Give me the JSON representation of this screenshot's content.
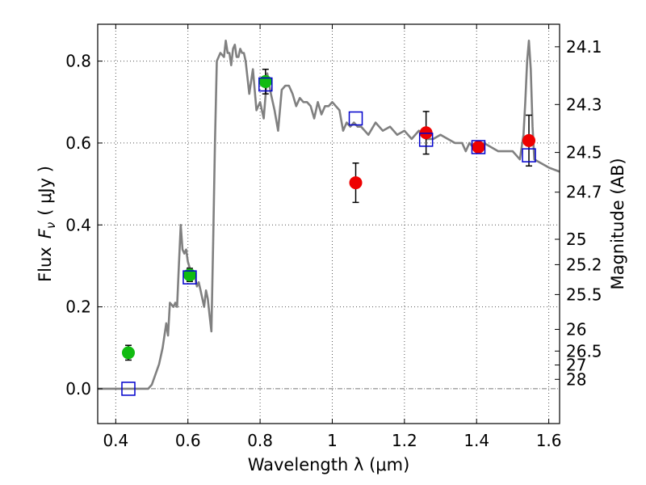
{
  "chart_data": {
    "type": "line",
    "title": "",
    "xlabel": "Wavelength  λ (μm)",
    "ylabel": "Flux  F_ν ( μJy )",
    "ylabel_parts": {
      "flux": "Flux",
      "symbol": "F",
      "subscript": "ν",
      "unit": "( μJy )"
    },
    "ylabel_right": "Magnitude (AB)",
    "xlim": [
      0.35,
      1.63
    ],
    "ylim": [
      -0.085,
      0.89
    ],
    "grid": true,
    "x_ticks": [
      0.4,
      0.6,
      0.8,
      1.0,
      1.2,
      1.4,
      1.6
    ],
    "x_tick_labels": [
      "0.4",
      "0.6",
      "0.8",
      "1",
      "1.2",
      "1.4",
      "1.6"
    ],
    "y_ticks": [
      0.0,
      0.2,
      0.4,
      0.6,
      0.8
    ],
    "y_tick_labels": [
      "0.0",
      "0.2",
      "0.4",
      "0.6",
      "0.8"
    ],
    "right_ticks": [
      {
        "label": "24.1",
        "flux": 0.835
      },
      {
        "label": "24.3",
        "flux": 0.694
      },
      {
        "label": "24.5",
        "flux": 0.577
      },
      {
        "label": "24.7",
        "flux": 0.48
      },
      {
        "label": "25",
        "flux": 0.365
      },
      {
        "label": "25.2",
        "flux": 0.303
      },
      {
        "label": "25.5",
        "flux": 0.23
      },
      {
        "label": "26",
        "flux": 0.145
      },
      {
        "label": "26.5",
        "flux": 0.092
      },
      {
        "label": "27",
        "flux": 0.058
      },
      {
        "label": "28",
        "flux": 0.023
      }
    ],
    "colors": {
      "model": "#808080",
      "green_points": "#11bb11",
      "red_points": "#ee0000",
      "squares": "#0000cc",
      "errorbar": "#000000",
      "grid": "#555555"
    },
    "series": [
      {
        "name": "model spectrum",
        "style": "line",
        "x": [
          0.35,
          0.49,
          0.5,
          0.52,
          0.53,
          0.54,
          0.545,
          0.55,
          0.56,
          0.565,
          0.57,
          0.575,
          0.58,
          0.585,
          0.59,
          0.595,
          0.6,
          0.61,
          0.62,
          0.625,
          0.63,
          0.635,
          0.64,
          0.645,
          0.65,
          0.655,
          0.66,
          0.665,
          0.67,
          0.675,
          0.68,
          0.69,
          0.7,
          0.705,
          0.71,
          0.715,
          0.72,
          0.725,
          0.73,
          0.735,
          0.74,
          0.745,
          0.75,
          0.755,
          0.76,
          0.77,
          0.78,
          0.79,
          0.8,
          0.81,
          0.82,
          0.83,
          0.84,
          0.85,
          0.86,
          0.87,
          0.88,
          0.89,
          0.9,
          0.91,
          0.92,
          0.93,
          0.94,
          0.95,
          0.96,
          0.97,
          0.98,
          0.99,
          1.0,
          1.01,
          1.02,
          1.03,
          1.04,
          1.05,
          1.06,
          1.07,
          1.08,
          1.1,
          1.12,
          1.14,
          1.16,
          1.18,
          1.2,
          1.22,
          1.24,
          1.26,
          1.28,
          1.3,
          1.32,
          1.34,
          1.36,
          1.37,
          1.38,
          1.4,
          1.42,
          1.44,
          1.46,
          1.48,
          1.5,
          1.52,
          1.53,
          1.535,
          1.54,
          1.545,
          1.55,
          1.555,
          1.56,
          1.58,
          1.6,
          1.63
        ],
        "y": [
          0.0,
          0.0,
          0.01,
          0.06,
          0.1,
          0.16,
          0.13,
          0.21,
          0.2,
          0.21,
          0.2,
          0.3,
          0.4,
          0.34,
          0.33,
          0.34,
          0.31,
          0.28,
          0.27,
          0.25,
          0.26,
          0.24,
          0.22,
          0.2,
          0.24,
          0.22,
          0.18,
          0.14,
          0.36,
          0.6,
          0.8,
          0.82,
          0.81,
          0.85,
          0.82,
          0.82,
          0.79,
          0.83,
          0.84,
          0.81,
          0.81,
          0.83,
          0.82,
          0.82,
          0.8,
          0.72,
          0.78,
          0.68,
          0.7,
          0.66,
          0.77,
          0.72,
          0.68,
          0.63,
          0.73,
          0.74,
          0.74,
          0.72,
          0.69,
          0.71,
          0.7,
          0.7,
          0.69,
          0.66,
          0.7,
          0.67,
          0.69,
          0.69,
          0.7,
          0.69,
          0.68,
          0.63,
          0.65,
          0.64,
          0.65,
          0.64,
          0.64,
          0.62,
          0.65,
          0.63,
          0.64,
          0.62,
          0.63,
          0.61,
          0.63,
          0.61,
          0.61,
          0.62,
          0.61,
          0.6,
          0.6,
          0.58,
          0.6,
          0.58,
          0.6,
          0.59,
          0.58,
          0.58,
          0.58,
          0.56,
          0.62,
          0.7,
          0.8,
          0.85,
          0.78,
          0.64,
          0.56,
          0.55,
          0.54,
          0.53
        ]
      },
      {
        "name": "green points",
        "style": "circle",
        "x": [
          0.435,
          0.605,
          0.815
        ],
        "y": [
          0.088,
          0.278,
          0.75
        ],
        "err": [
          0.018,
          0.016,
          0.03
        ]
      },
      {
        "name": "red points",
        "style": "circle",
        "x": [
          1.065,
          1.26,
          1.405,
          1.545
        ],
        "y": [
          0.503,
          0.625,
          0.59,
          0.606
        ],
        "err": [
          0.048,
          0.052,
          0.0,
          0.062
        ]
      },
      {
        "name": "model magnitudes",
        "style": "square",
        "x": [
          0.435,
          0.605,
          0.815,
          1.065,
          1.26,
          1.405,
          1.545
        ],
        "y": [
          0.0,
          0.272,
          0.743,
          0.66,
          0.608,
          0.59,
          0.57
        ]
      }
    ]
  }
}
